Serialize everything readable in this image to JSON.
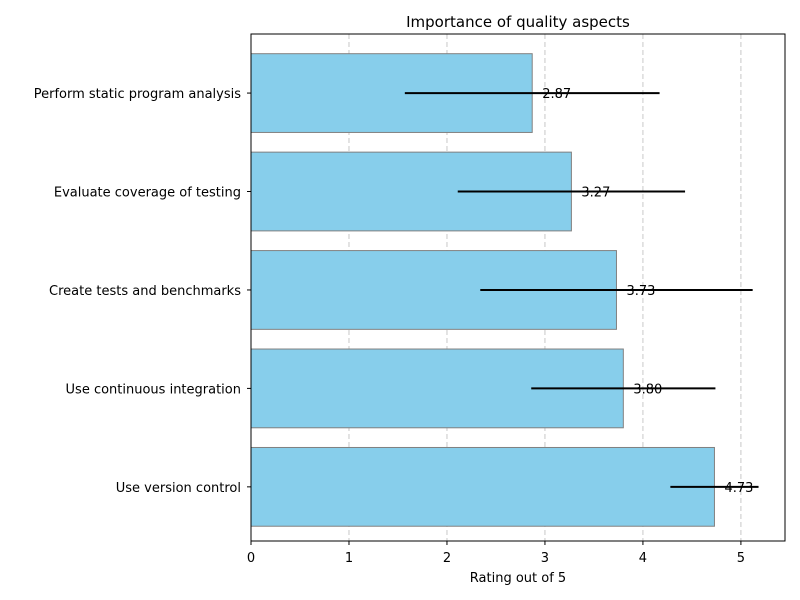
{
  "chart_data": {
    "type": "bar",
    "orientation": "horizontal",
    "title": "Importance of quality aspects",
    "xlabel": "Rating out of 5",
    "ylabel": "",
    "xlim": [
      0,
      5.45
    ],
    "xticks": [
      0,
      1,
      2,
      3,
      4,
      5
    ],
    "grid": "vertical dashed",
    "categories": [
      "Perform static program analysis",
      "Evaluate coverage of testing",
      "Create tests and benchmarks",
      "Use continuous integration",
      "Use version control"
    ],
    "values": [
      2.87,
      3.27,
      3.73,
      3.8,
      4.73
    ],
    "value_labels": [
      "2.87",
      "3.27",
      "3.73",
      "3.80",
      "4.73"
    ],
    "errors": [
      1.3,
      1.16,
      1.39,
      0.94,
      0.45
    ]
  },
  "colors": {
    "bar_fill": "#87CEEB",
    "bar_edge": "#808080",
    "error_bar": "#000000",
    "grid": "#c8c8c8",
    "axis": "#000000"
  }
}
